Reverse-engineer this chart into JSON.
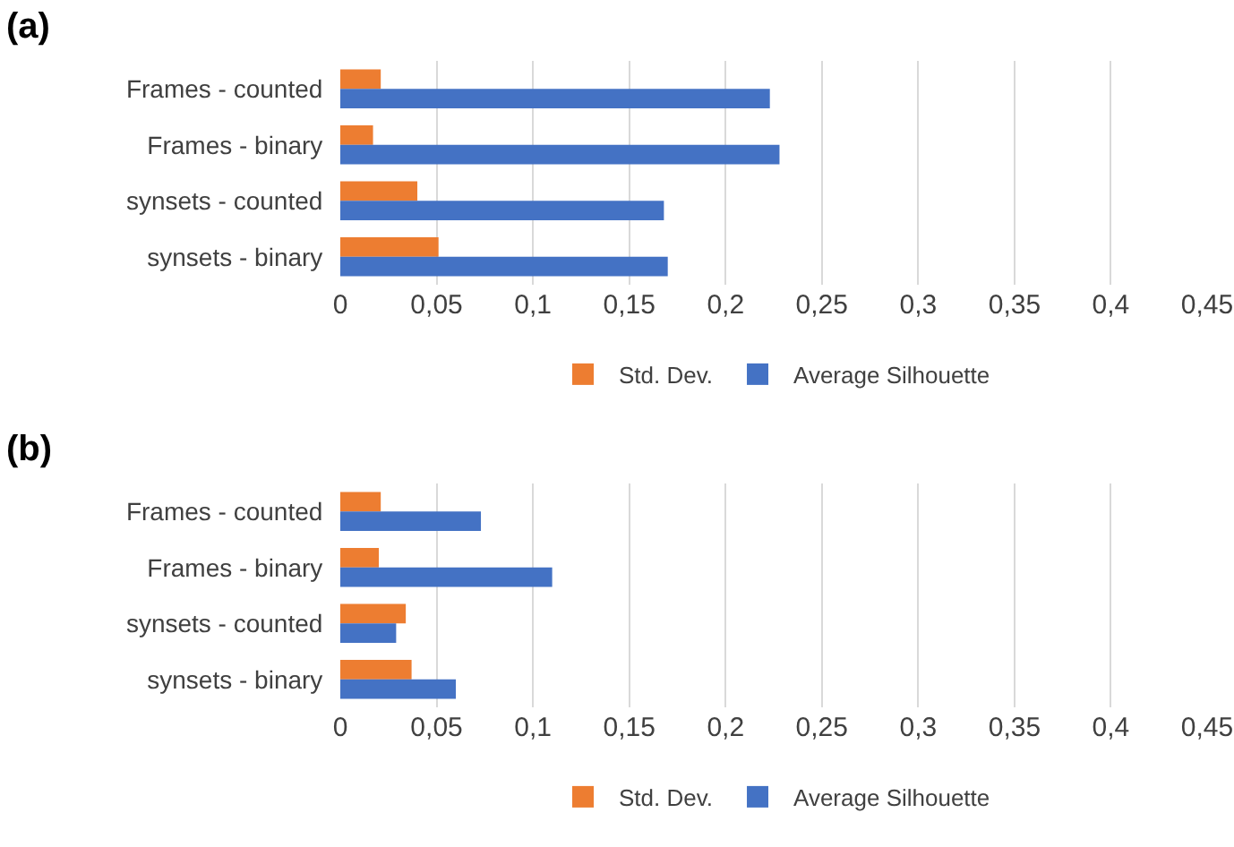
{
  "chart_data": [
    {
      "type": "bar",
      "title": "(a)",
      "orientation": "horizontal",
      "categories": [
        "Frames - counted",
        "Frames - binary",
        "synsets - counted",
        "synsets - binary"
      ],
      "series": [
        {
          "name": "Std. Dev.",
          "color": "#ed7d31",
          "values": [
            0.021,
            0.017,
            0.04,
            0.051
          ]
        },
        {
          "name": "Average Silhouette",
          "color": "#4472c4",
          "values": [
            0.223,
            0.228,
            0.168,
            0.17
          ]
        }
      ],
      "xlim": [
        0,
        0.45
      ],
      "xticks": [
        0,
        {
          "value": 0.05,
          "label": "0,05"
        },
        {
          "value": 0.1,
          "label": "0,1"
        },
        {
          "value": 0.15,
          "label": "0,15"
        },
        {
          "value": 0.2,
          "label": "0,2"
        },
        {
          "value": 0.25,
          "label": "0,25"
        },
        {
          "value": 0.3,
          "label": "0,3"
        },
        {
          "value": 0.35,
          "label": "0,35"
        },
        {
          "value": 0.4,
          "label": "0,4"
        },
        {
          "value": 0.45,
          "label": "0,45"
        }
      ],
      "grid": "x",
      "legend": "bottom"
    },
    {
      "type": "bar",
      "title": "(b)",
      "orientation": "horizontal",
      "categories": [
        "Frames - counted",
        "Frames - binary",
        "synsets - counted",
        "synsets - binary"
      ],
      "series": [
        {
          "name": "Std. Dev.",
          "color": "#ed7d31",
          "values": [
            0.021,
            0.02,
            0.034,
            0.037
          ]
        },
        {
          "name": "Average Silhouette",
          "color": "#4472c4",
          "values": [
            0.073,
            0.11,
            0.029,
            0.06
          ]
        }
      ],
      "xlim": [
        0,
        0.45
      ],
      "xticks": [
        0,
        {
          "value": 0.05,
          "label": "0,05"
        },
        {
          "value": 0.1,
          "label": "0,1"
        },
        {
          "value": 0.15,
          "label": "0,15"
        },
        {
          "value": 0.2,
          "label": "0,2"
        },
        {
          "value": 0.25,
          "label": "0,25"
        },
        {
          "value": 0.3,
          "label": "0,3"
        },
        {
          "value": 0.35,
          "label": "0,35"
        },
        {
          "value": 0.4,
          "label": "0,4"
        },
        {
          "value": 0.45,
          "label": "0,45"
        }
      ],
      "grid": "x",
      "legend": "bottom"
    }
  ]
}
